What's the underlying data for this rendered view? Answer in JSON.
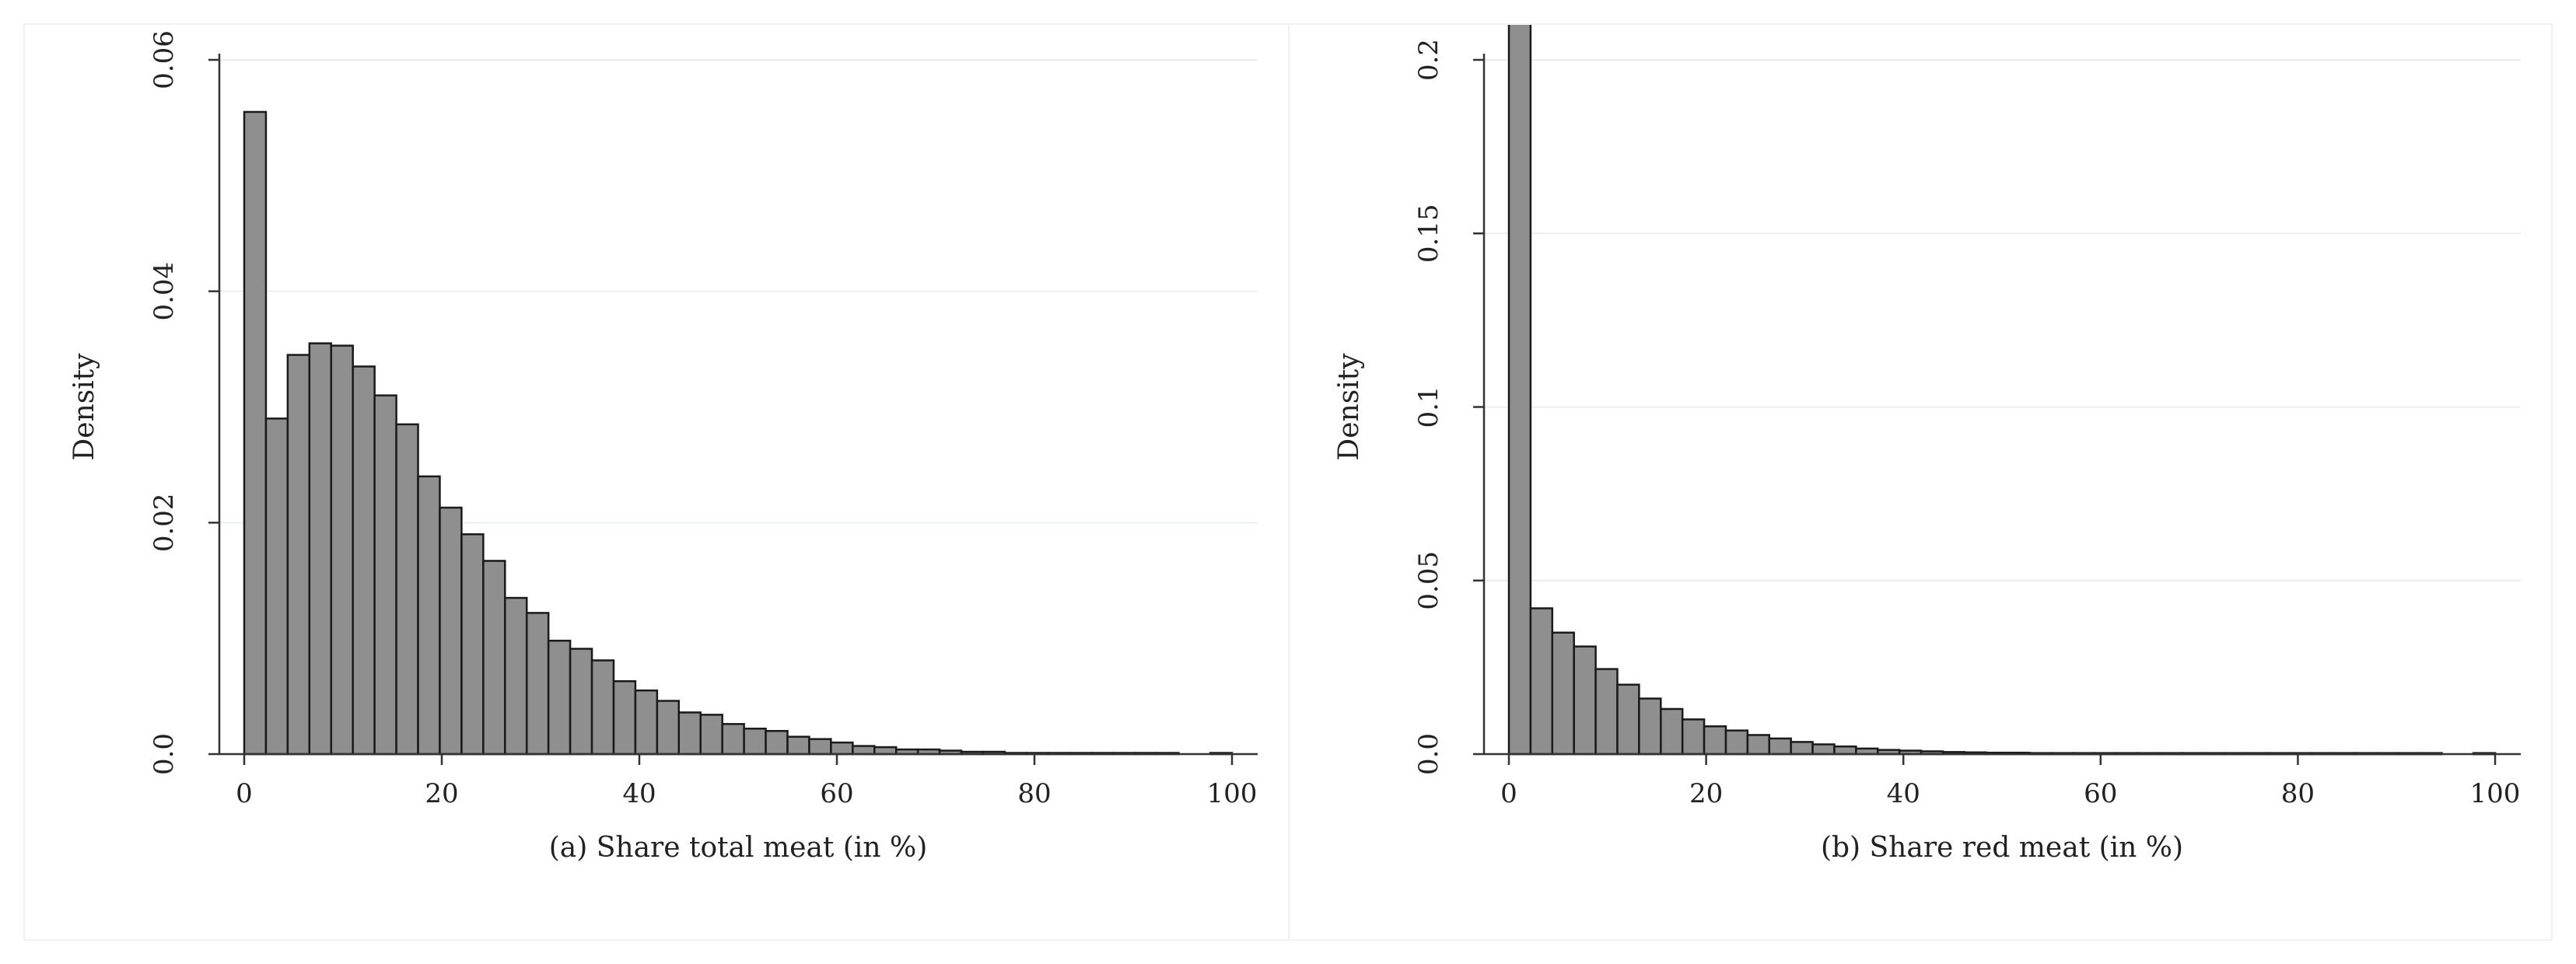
{
  "chart_data": [
    {
      "type": "bar",
      "title": "(a) Share total meat (in %)",
      "xlabel": "(a) Share total meat (in %)",
      "ylabel": "Density",
      "xlim": [
        0,
        100
      ],
      "ylim": [
        0,
        0.06
      ],
      "xticks": [
        "0",
        "20",
        "40",
        "60",
        "80",
        "100"
      ],
      "yticks": [
        "0.0",
        "0.02",
        "0.04",
        "0.06"
      ],
      "grid": true,
      "bin_width": 2.2,
      "x": [
        1.1,
        3.3,
        5.5,
        7.7,
        9.9,
        12.1,
        14.3,
        16.5,
        18.7,
        20.9,
        23.1,
        25.3,
        27.5,
        29.7,
        31.9,
        34.1,
        36.3,
        38.5,
        40.7,
        42.9,
        45.1,
        47.3,
        49.5,
        51.7,
        53.9,
        56.1,
        58.3,
        60.5,
        62.7,
        64.9,
        67.1,
        69.3,
        71.5,
        73.7,
        75.9,
        78.1,
        80.3,
        82.5,
        84.7,
        86.9,
        89.1,
        91.3,
        93.5,
        98.9
      ],
      "values": [
        0.0555,
        0.029,
        0.0345,
        0.0355,
        0.0353,
        0.0335,
        0.031,
        0.0285,
        0.024,
        0.0213,
        0.019,
        0.0167,
        0.0135,
        0.0122,
        0.0098,
        0.0091,
        0.0081,
        0.0063,
        0.0055,
        0.0046,
        0.0036,
        0.0034,
        0.0026,
        0.0022,
        0.002,
        0.0015,
        0.0013,
        0.001,
        0.0007,
        0.0006,
        0.0004,
        0.0004,
        0.0003,
        0.0002,
        0.0002,
        0.0001,
        0.0001,
        0.0001,
        0.0001,
        0.0001,
        0.0001,
        0.0001,
        0.0001,
        0.0001
      ]
    },
    {
      "type": "bar",
      "title": "(b) Share red meat (in %)",
      "xlabel": "(b) Share red meat (in %)",
      "ylabel": "Density",
      "xlim": [
        0,
        100
      ],
      "ylim": [
        0,
        0.2
      ],
      "xticks": [
        "0",
        "20",
        "40",
        "60",
        "80",
        "100"
      ],
      "yticks": [
        "0.0",
        "0.05",
        "0.1",
        "0.15",
        "0.2"
      ],
      "grid": true,
      "bin_width": 2.2,
      "x": [
        1.1,
        3.3,
        5.5,
        7.7,
        9.9,
        12.1,
        14.3,
        16.5,
        18.7,
        20.9,
        23.1,
        25.3,
        27.5,
        29.7,
        31.9,
        34.1,
        36.3,
        38.5,
        40.7,
        42.9,
        45.1,
        47.3,
        49.5,
        51.7,
        53.9,
        56.1,
        58.3,
        60.5,
        62.7,
        64.9,
        67.1,
        69.3,
        71.5,
        73.7,
        75.9,
        78.1,
        80.3,
        82.5,
        84.7,
        86.9,
        89.1,
        91.3,
        93.5,
        98.9
      ],
      "values": [
        0.214,
        0.042,
        0.035,
        0.031,
        0.0245,
        0.02,
        0.016,
        0.013,
        0.01,
        0.008,
        0.0068,
        0.0055,
        0.0045,
        0.0035,
        0.0028,
        0.0022,
        0.0016,
        0.0012,
        0.001,
        0.0008,
        0.0006,
        0.0005,
        0.0004,
        0.0004,
        0.0003,
        0.0003,
        0.0003,
        0.0003,
        0.0003,
        0.0003,
        0.0003,
        0.0003,
        0.0003,
        0.0003,
        0.0003,
        0.0003,
        0.0003,
        0.0003,
        0.0003,
        0.0003,
        0.0003,
        0.0003,
        0.0003,
        0.0003
      ]
    }
  ]
}
